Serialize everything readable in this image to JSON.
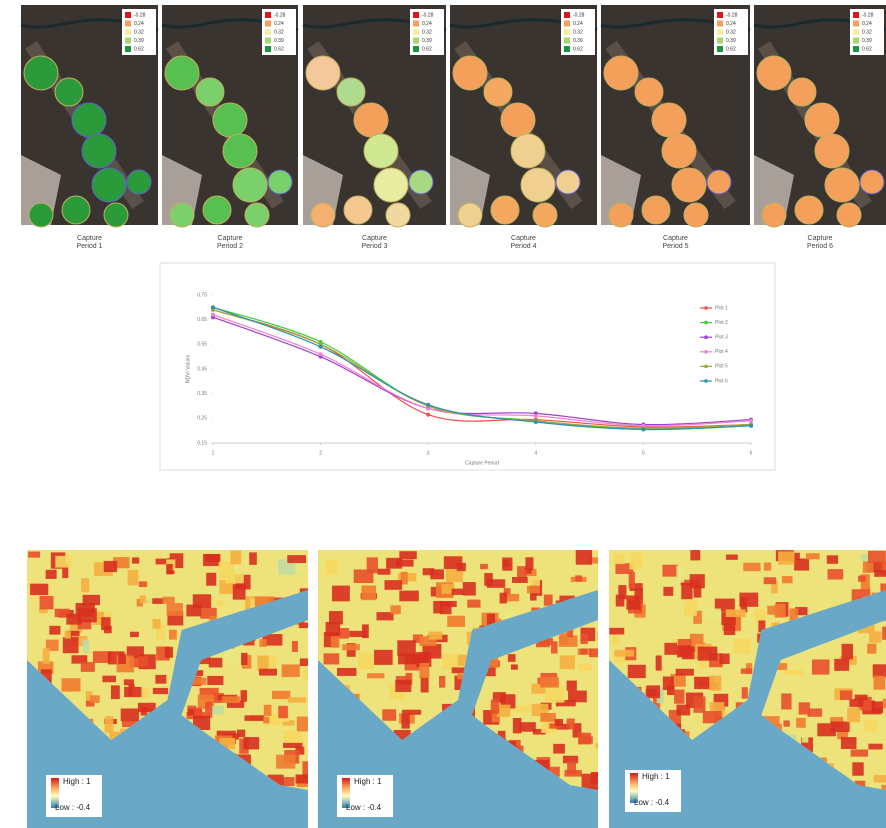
{
  "top_legend": [
    {
      "label": -0.28,
      "color": "#d7191c"
    },
    {
      "label": 0.24,
      "color": "#f4a05a"
    },
    {
      "label": 0.32,
      "color": "#f5f0a0"
    },
    {
      "label": 0.39,
      "color": "#a6d96a"
    },
    {
      "label": 0.62,
      "color": "#1a9641"
    }
  ],
  "top_panels": [
    {
      "caption": [
        "Capture",
        "Period 1"
      ]
    },
    {
      "caption": [
        "Capture",
        "Period 2"
      ]
    },
    {
      "caption": [
        "Capture",
        "Period 3"
      ]
    },
    {
      "caption": [
        "Capture",
        "Period 4"
      ]
    },
    {
      "caption": [
        "Capture",
        "Period 5"
      ]
    },
    {
      "caption": [
        "Capture",
        "Period 6"
      ]
    }
  ],
  "chart_data": {
    "type": "line",
    "x_label": "Capture Period",
    "y_label": "NDVI Values",
    "x": [
      1,
      2,
      3,
      4,
      5,
      6
    ],
    "xlim": [
      1,
      6
    ],
    "xticks": [
      1,
      2,
      3,
      4,
      5,
      6
    ],
    "ylim": [
      0.15,
      0.75
    ],
    "yticks": [
      0.15,
      0.25,
      0.35,
      0.45,
      0.55,
      0.65,
      0.75
    ],
    "grid": false,
    "legend": "right",
    "series": [
      {
        "name": "Plot 1",
        "color": "#f0504a",
        "values": [
          0.69,
          0.55,
          0.265,
          0.245,
          0.215,
          0.225
        ]
      },
      {
        "name": "Plot 2",
        "color": "#3ccf3c",
        "values": [
          0.7,
          0.56,
          0.3,
          0.24,
          0.205,
          0.22
        ]
      },
      {
        "name": "Plot 3",
        "color": "#a040d0",
        "values": [
          0.66,
          0.5,
          0.29,
          0.27,
          0.225,
          0.245
        ]
      },
      {
        "name": "Plot 4",
        "color": "#f080d0",
        "values": [
          0.67,
          0.51,
          0.29,
          0.26,
          0.22,
          0.24
        ]
      },
      {
        "name": "Plot 5",
        "color": "#a0a830",
        "values": [
          0.69,
          0.55,
          0.3,
          0.24,
          0.21,
          0.225
        ]
      },
      {
        "name": "Plot 6",
        "color": "#3090b0",
        "values": [
          0.7,
          0.54,
          0.305,
          0.235,
          0.205,
          0.22
        ]
      }
    ]
  },
  "bottom_panels": [
    {
      "high": "High : 1",
      "low": "Low : -0.4"
    },
    {
      "high": "High : 1",
      "low": "Low : -0.4"
    },
    {
      "high": "High : 1",
      "low": "Low : -0.4"
    }
  ]
}
